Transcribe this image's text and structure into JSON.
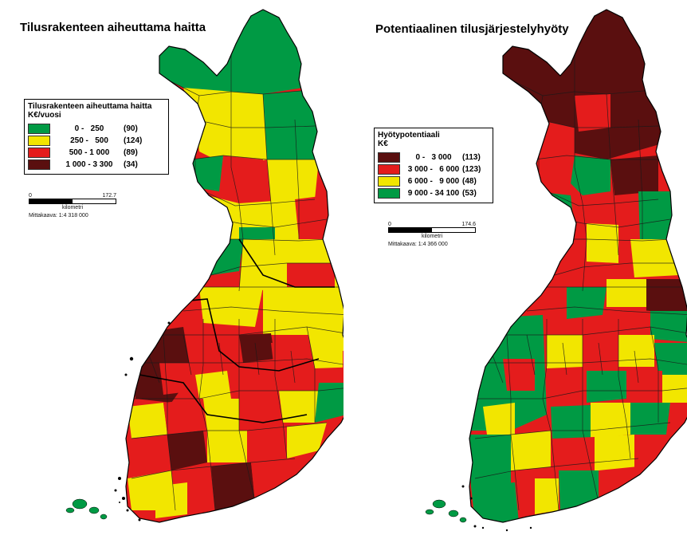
{
  "left_map": {
    "title": "Tilusrakenteen aiheuttama haitta",
    "legend": {
      "title_line1": "Tilusrakenteen aiheuttama haitta",
      "title_line2": "K€/vuosi",
      "items": [
        {
          "range": "0 -   250",
          "count": "(90)",
          "color": "#009a44"
        },
        {
          "range": "250 -   500",
          "count": "(124)",
          "color": "#f2e600"
        },
        {
          "range": "500 - 1 000",
          "count": "(89)",
          "color": "#e41c1c"
        },
        {
          "range": "1 000 - 3 300",
          "count": "(34)",
          "color": "#5a0f0f"
        }
      ]
    },
    "scale": {
      "start": "0",
      "end": "172.7",
      "unit": "kilometri",
      "ratio": "Mittakaava: 1:4 318 000"
    }
  },
  "right_map": {
    "title": "Potentiaalinen tilusjärjestelyhyöty",
    "legend": {
      "title_line1": "Hyötypotentiaali",
      "title_line2": "K€",
      "items": [
        {
          "range": "0 -   3 000",
          "count": "(113)",
          "color": "#5a0f0f"
        },
        {
          "range": "3 000 -   6 000",
          "count": "(123)",
          "color": "#e41c1c"
        },
        {
          "range": "6 000 -   9 000",
          "count": "(48)",
          "color": "#f2e600"
        },
        {
          "range": "9 000 - 34 100",
          "count": "(53)",
          "color": "#009a44"
        }
      ]
    },
    "scale": {
      "start": "0",
      "end": "174.6",
      "unit": "kilometri",
      "ratio": "Mittakaava:  1:4 366 000"
    }
  }
}
